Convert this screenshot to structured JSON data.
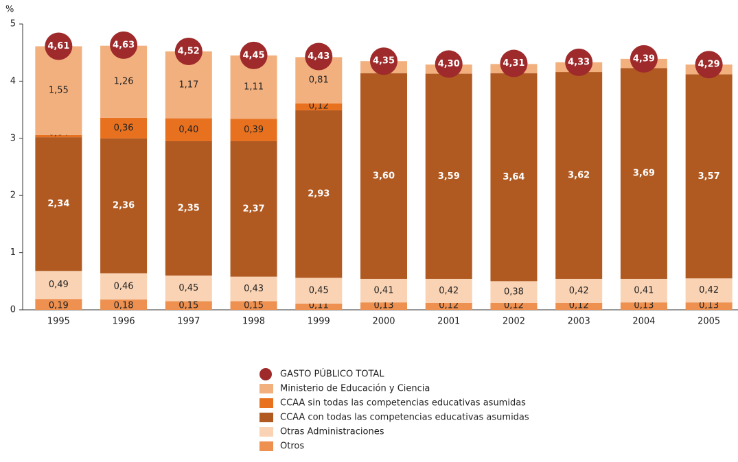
{
  "chart_data": {
    "type": "stacked-bar",
    "y_label": "%",
    "categories": [
      "1995",
      "1996",
      "1997",
      "1998",
      "1999",
      "2000",
      "2001",
      "2002",
      "2003",
      "2004",
      "2005"
    ],
    "ylim": [
      0,
      5
    ],
    "yticks": [
      0,
      1,
      2,
      3,
      4,
      5
    ],
    "grid": false,
    "totals": {
      "name": "GASTO PÚBLICO TOTAL",
      "color": "#9e2a2b",
      "values": [
        4.61,
        4.63,
        4.52,
        4.45,
        4.43,
        4.35,
        4.3,
        4.31,
        4.33,
        4.39,
        4.29
      ],
      "value_labels": [
        "4,61",
        "4,63",
        "4,52",
        "4,45",
        "4,43",
        "4,35",
        "4,30",
        "4,31",
        "4,33",
        "4,39",
        "4,29"
      ]
    },
    "series": [
      {
        "name": "Ministerio de Educación y Ciencia",
        "color": "#f2b07e",
        "values": [
          1.55,
          1.26,
          1.17,
          1.11,
          0.81,
          0.21,
          0.16,
          0.16,
          0.17,
          0.16,
          0.17
        ],
        "value_labels": [
          "1,55",
          "1,26",
          "1,17",
          "1,11",
          "0,81",
          "0,21",
          "0,16",
          "0,16",
          "0,17",
          "0,16",
          "0,17"
        ]
      },
      {
        "name": "CCAA sin todas las competencias educativas asumidas",
        "color": "#e8711f",
        "values": [
          0.04,
          0.36,
          0.4,
          0.39,
          0.12,
          null,
          null,
          null,
          null,
          null,
          null
        ],
        "value_labels": [
          "0,04",
          "0,36",
          "0,40",
          "0,39",
          "0,12",
          null,
          null,
          null,
          null,
          null,
          null
        ]
      },
      {
        "name": "CCAA con todas las competencias educativas asumidas",
        "color": "#b05a22",
        "values": [
          2.34,
          2.36,
          2.35,
          2.37,
          2.93,
          3.6,
          3.59,
          3.64,
          3.62,
          3.69,
          3.57
        ],
        "value_labels": [
          "2,34",
          "2,36",
          "2,35",
          "2,37",
          "2,93",
          "3,60",
          "3,59",
          "3,64",
          "3,62",
          "3,69",
          "3,57"
        ]
      },
      {
        "name": "Otras Administraciones",
        "color": "#f9d3b4",
        "values": [
          0.49,
          0.46,
          0.45,
          0.43,
          0.45,
          0.41,
          0.42,
          0.38,
          0.42,
          0.41,
          0.42
        ],
        "value_labels": [
          "0,49",
          "0,46",
          "0,45",
          "0,43",
          "0,45",
          "0,41",
          "0,42",
          "0,38",
          "0,42",
          "0,41",
          "0,42"
        ]
      },
      {
        "name": "Otros",
        "color": "#ee9050",
        "values": [
          0.19,
          0.18,
          0.15,
          0.15,
          0.11,
          0.13,
          0.12,
          0.12,
          0.12,
          0.13,
          0.13
        ],
        "value_labels": [
          "0,19",
          "0,18",
          "0,15",
          "0,15",
          "0,11",
          "0,13",
          "0,12",
          "0,12",
          "0,12",
          "0,13",
          "0,13"
        ]
      }
    ]
  }
}
